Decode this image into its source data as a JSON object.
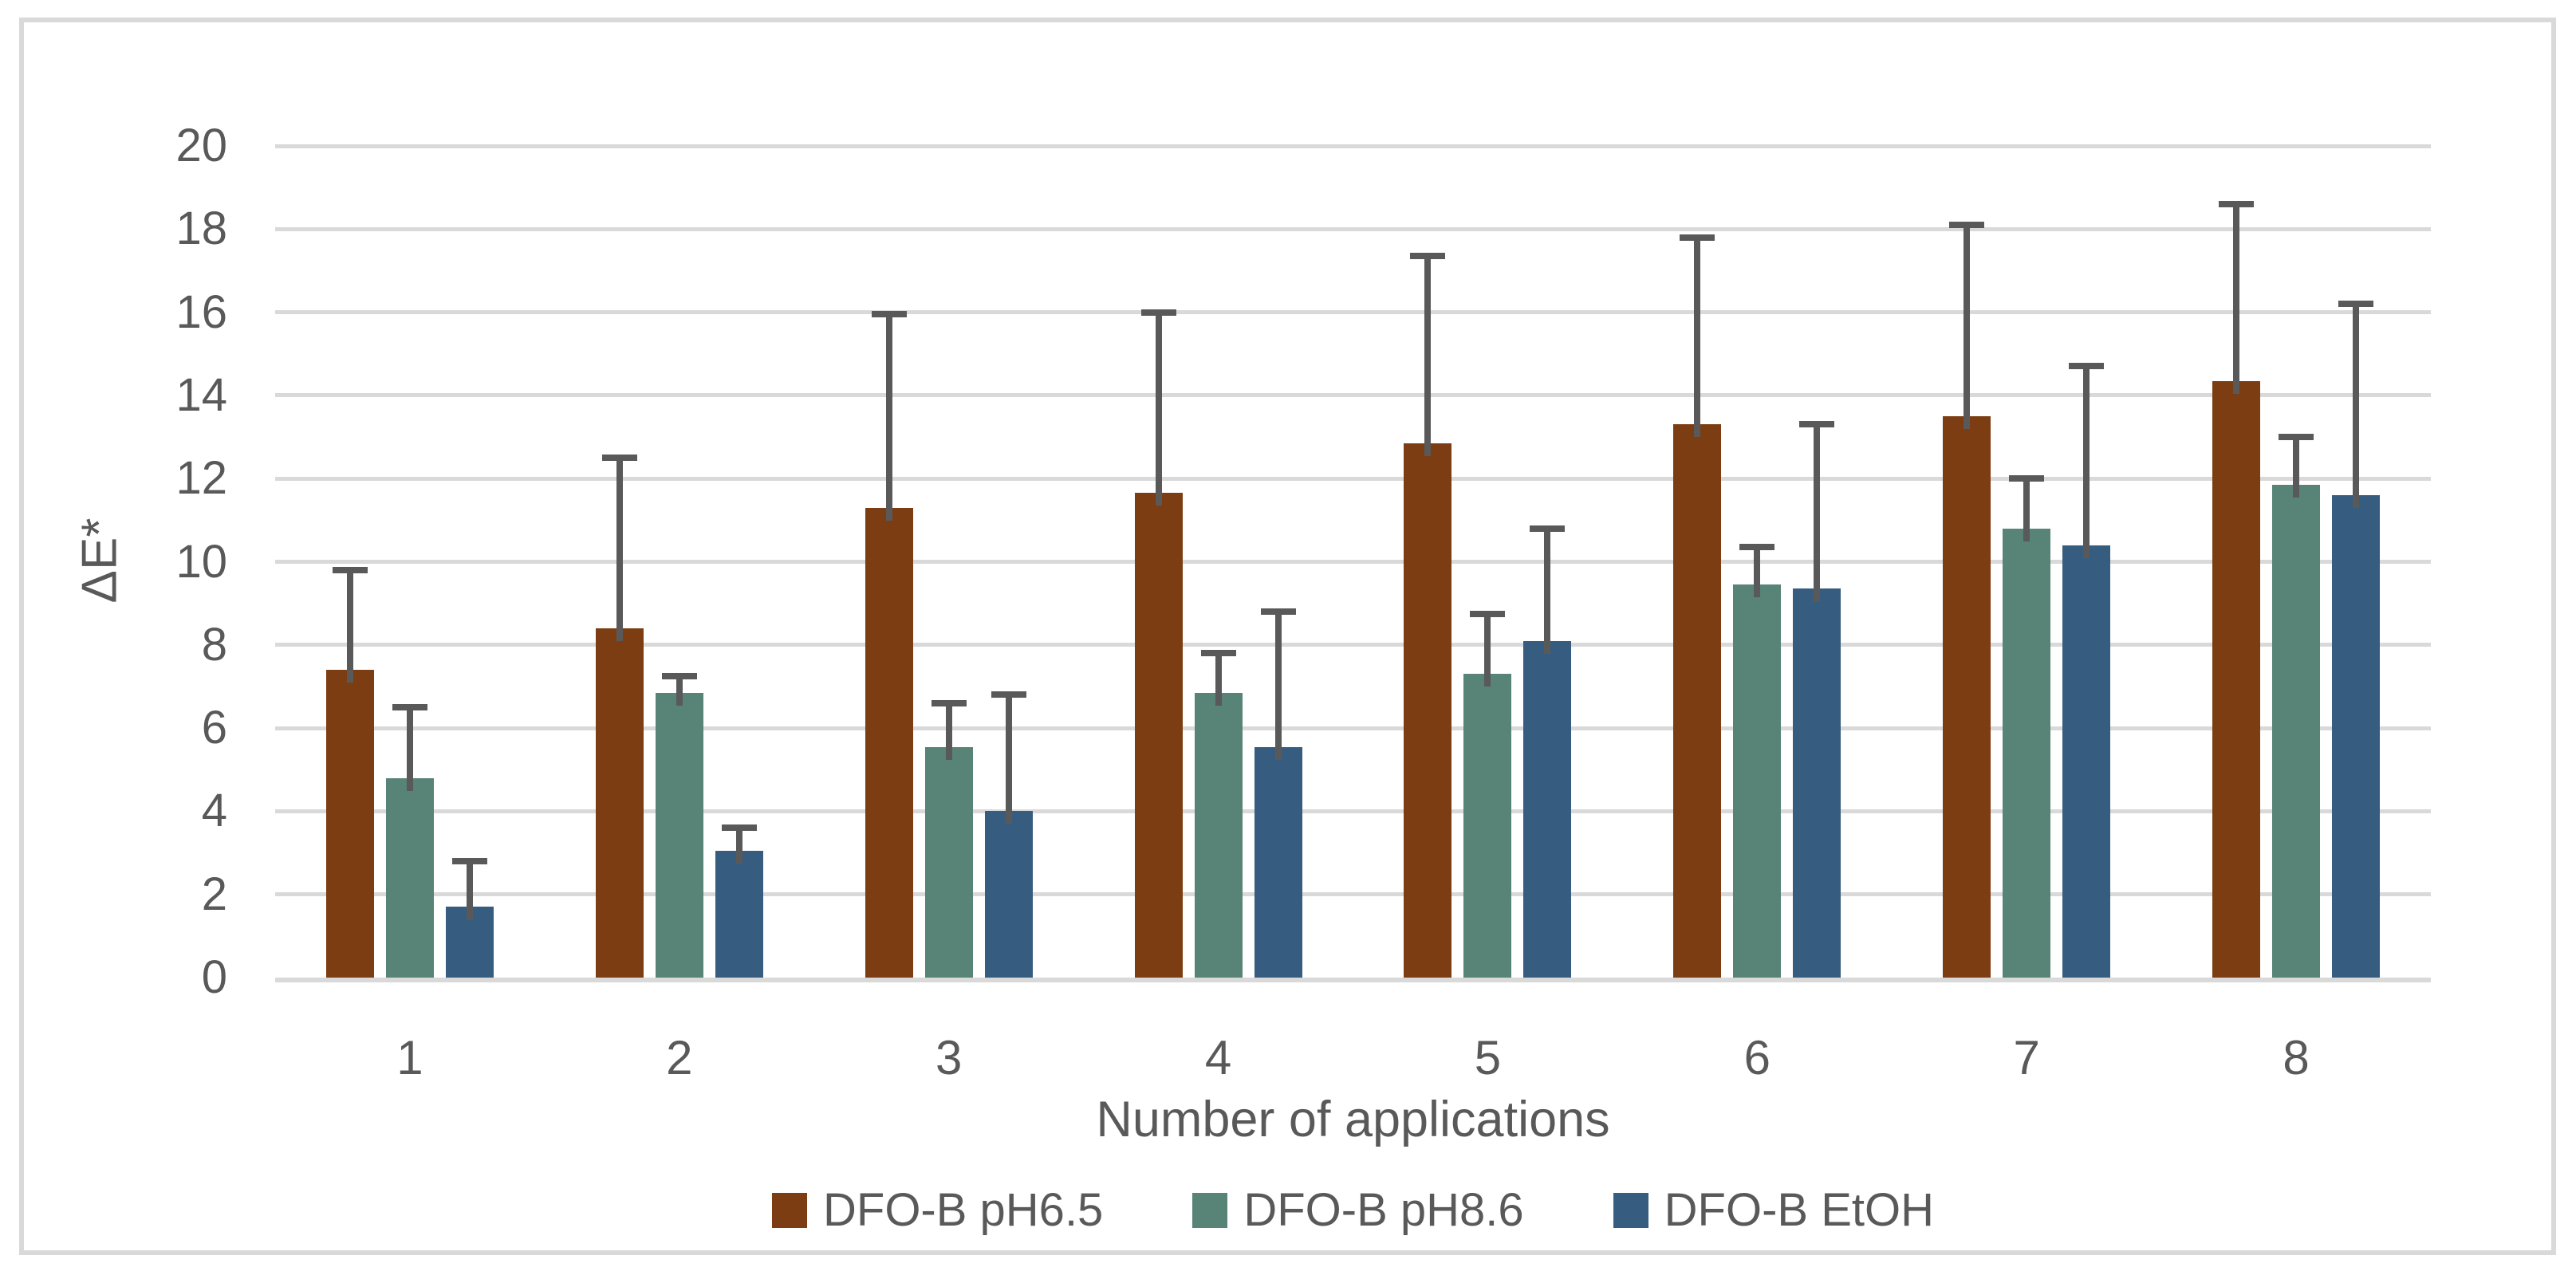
{
  "figure": {
    "background": "#FFFFFF",
    "border_color": "#D9D9D9"
  },
  "chart_data": {
    "type": "bar",
    "title": "",
    "xlabel": "Number of applications",
    "ylabel": "ΔE*",
    "categories": [
      "1",
      "2",
      "3",
      "4",
      "5",
      "6",
      "7",
      "8"
    ],
    "ylim": [
      0,
      20
    ],
    "yticks": [
      0,
      2,
      4,
      6,
      8,
      10,
      12,
      14,
      16,
      18,
      20
    ],
    "ytick_labels": [
      "0",
      "2",
      "4",
      "6",
      "8",
      "10",
      "12",
      "14",
      "16",
      "18",
      "20"
    ],
    "grid": true,
    "legend_position": "bottom",
    "error_bars": "plus-only",
    "series": [
      {
        "name": "DFO-B pH6.5",
        "color": "#7C3D12",
        "values": [
          7.4,
          8.4,
          11.3,
          11.65,
          12.85,
          13.3,
          13.5,
          14.35
        ],
        "error_plus": [
          2.4,
          4.1,
          4.65,
          4.35,
          4.5,
          4.5,
          4.6,
          4.25
        ]
      },
      {
        "name": "DFO-B pH8.6",
        "color": "#588377",
        "values": [
          4.8,
          6.85,
          5.55,
          6.85,
          7.3,
          9.45,
          10.8,
          11.85
        ],
        "error_plus": [
          1.7,
          0.4,
          1.05,
          0.95,
          1.45,
          0.9,
          1.2,
          1.15
        ]
      },
      {
        "name": "DFO-B EtOH",
        "color": "#365D80",
        "values": [
          1.7,
          3.05,
          4.0,
          5.55,
          8.1,
          9.35,
          10.4,
          11.6
        ],
        "error_plus": [
          1.1,
          0.55,
          2.8,
          3.25,
          2.7,
          3.95,
          4.3,
          4.6
        ]
      }
    ],
    "colors": {
      "text": "#595959",
      "gridline": "#D9D9D9",
      "axis_line": "#D9D9D9",
      "error_bar": "#595959"
    }
  }
}
